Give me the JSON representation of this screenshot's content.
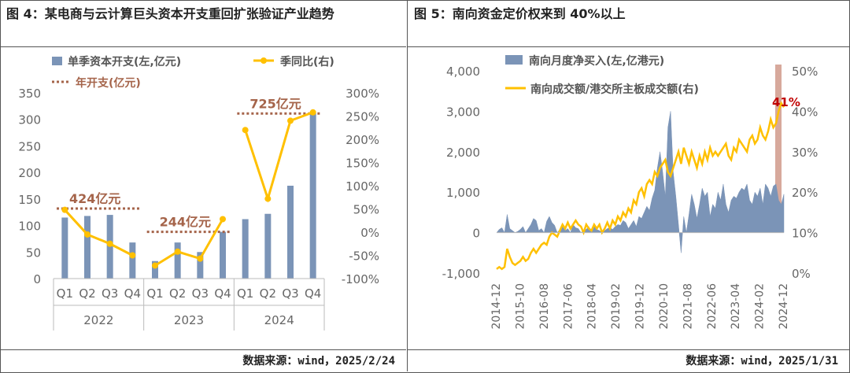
{
  "left_panel": {
    "title": "图 4：某电商与云计算巨头资本开支重回扩张验证产业趋势",
    "source": "数据来源：wind，2025/2/24"
  },
  "right_panel": {
    "title": "图 5：南向资金定价权来到 40%以上",
    "source": "数据来源：wind，2025/1/31"
  },
  "chart_data": [
    {
      "type": "bar",
      "legend": [
        "单季资本开支(左,亿元)",
        "季同比(右)",
        "年开支(亿元)"
      ],
      "categories": [
        "Q1",
        "Q2",
        "Q3",
        "Q4",
        "Q1",
        "Q2",
        "Q3",
        "Q4",
        "Q1",
        "Q2",
        "Q3",
        "Q4"
      ],
      "year_groups": [
        "2022",
        "2023",
        "2024"
      ],
      "y_left_ticks": [
        "0",
        "50",
        "100",
        "150",
        "200",
        "250",
        "300",
        "350"
      ],
      "y_left_range": [
        0,
        350
      ],
      "y_right_ticks": [
        "-100%",
        "-50%",
        "0%",
        "50%",
        "100%",
        "150%",
        "200%",
        "250%",
        "300%"
      ],
      "y_right_range": [
        -100,
        300
      ],
      "series": [
        {
          "name": "单季资本开支(左,亿元)",
          "values": [
            115,
            118,
            120,
            68,
            33,
            68,
            50,
            88,
            112,
            122,
            175,
            312
          ],
          "color": "#7b94b7"
        },
        {
          "name": "季同比(右)",
          "values": [
            48,
            -5,
            -25,
            -50,
            -72,
            -42,
            -57,
            28,
            220,
            72,
            240,
            258
          ],
          "color": "#ffc000"
        }
      ],
      "annual_lines": [
        {
          "label": "424亿元",
          "value": 132
        },
        {
          "label": "244亿元",
          "value": 88
        },
        {
          "label": "725亿元",
          "value": 311
        }
      ]
    },
    {
      "type": "area",
      "legend": [
        "南向月度净买入(左,亿港元)",
        "南向成交额/港交所主板成交额(右)"
      ],
      "x_ticks": [
        "2014-12",
        "2015-10",
        "2016-08",
        "2017-06",
        "2018-04",
        "2019-02",
        "2019-12",
        "2020-10",
        "2021-08",
        "2022-06",
        "2023-04",
        "2024-02",
        "2024-12"
      ],
      "y_left_ticks": [
        "-1,000",
        "0",
        "1,000",
        "2,000",
        "3,000",
        "4,000"
      ],
      "y_left_range": [
        -1000,
        4000
      ],
      "y_right_ticks": [
        "0%",
        "10%",
        "20%",
        "30%",
        "40%",
        "50%"
      ],
      "y_right_range": [
        0,
        50
      ],
      "series": [
        {
          "name": "南向月度净买入(左,亿港元)",
          "color": "#7b94b7",
          "values": [
            0,
            80,
            120,
            0,
            450,
            100,
            50,
            0,
            30,
            80,
            150,
            0,
            100,
            200,
            350,
            300,
            50,
            100,
            0,
            280,
            400,
            250,
            180,
            0,
            80,
            150,
            50,
            100,
            0,
            200,
            120,
            100,
            0,
            60,
            80,
            150,
            0,
            200,
            80,
            50,
            0,
            50,
            100,
            120,
            80,
            150,
            200,
            180,
            300,
            250,
            100,
            200,
            300,
            150,
            400,
            350,
            500,
            650,
            550,
            850,
            1050,
            1600,
            2000,
            1500,
            900,
            2600,
            3000,
            1500,
            900,
            200,
            -500,
            400,
            0,
            450,
            950,
            700,
            350,
            700,
            1100,
            900,
            1000,
            400,
            700,
            600,
            1000,
            800,
            1200,
            700,
            500,
            800,
            900,
            850,
            1000,
            1100,
            1050,
            1200,
            800,
            700,
            1000,
            900,
            1100,
            700,
            1200,
            1100,
            900,
            1150,
            1200,
            800,
            700,
            950
          ]
        },
        {
          "name": "南向成交额/港交所主板成交额(右)",
          "color": "#ffc000",
          "values": [
            1,
            1.5,
            1,
            1.5,
            6,
            4,
            2.5,
            2,
            2.5,
            3,
            4,
            3,
            3.5,
            5,
            6,
            5,
            6,
            7,
            7.5,
            7,
            9,
            10,
            9.5,
            9,
            10.5,
            12,
            11,
            12.5,
            11,
            12,
            13,
            12,
            11.5,
            10,
            12,
            11,
            10.5,
            12,
            11,
            12,
            10,
            11,
            12.5,
            11,
            13,
            12,
            14,
            13,
            15,
            14,
            16,
            15,
            18,
            17,
            20,
            21,
            19,
            22,
            23,
            22,
            25,
            24,
            26,
            27,
            28,
            25,
            24,
            26,
            28,
            30,
            27,
            31,
            29,
            27,
            30,
            28,
            26,
            29,
            27,
            30,
            28,
            31,
            29,
            30,
            29,
            30,
            31,
            32,
            29,
            28,
            31,
            30,
            33,
            32,
            31,
            30,
            33,
            34,
            32,
            33,
            36,
            34,
            33,
            35,
            38,
            36,
            37,
            40,
            42,
            41
          ]
        }
      ],
      "annotation": "41%"
    }
  ]
}
